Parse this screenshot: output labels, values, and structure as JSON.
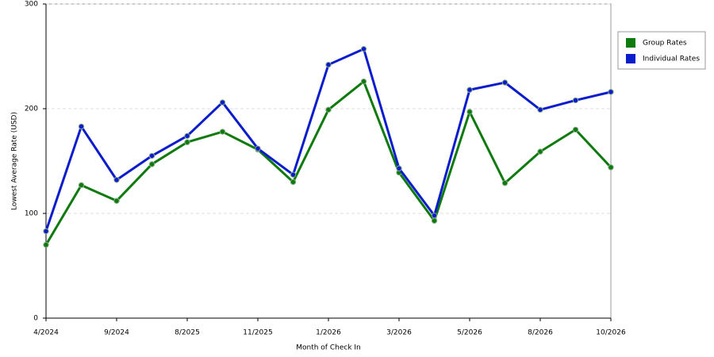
{
  "chart_data": {
    "type": "line",
    "x_label": "Month of Check In",
    "y_label": "Lowest Average Rate (USD)",
    "categories": [
      "4/2024",
      null,
      "9/2024",
      null,
      "8/2025",
      null,
      "11/2025",
      null,
      "1/2026",
      null,
      "3/2026",
      null,
      "5/2026",
      null,
      "8/2026",
      null,
      "10/2026"
    ],
    "series": [
      {
        "name": "Group Rates",
        "color": "#0d7a0d",
        "values": [
          70,
          127,
          112,
          147,
          168,
          178,
          161,
          130,
          199,
          226,
          139,
          93,
          197,
          129,
          159,
          180,
          144
        ]
      },
      {
        "name": "Individual Rates",
        "color": "#0a1ccc",
        "values": [
          83,
          183,
          132,
          155,
          174,
          206,
          162,
          137,
          242,
          257,
          143,
          98,
          218,
          225,
          199,
          208,
          216
        ]
      }
    ],
    "ylim": [
      0,
      300
    ],
    "yticks": [
      0,
      100,
      200,
      300
    ],
    "grid": true,
    "legend": "right"
  }
}
